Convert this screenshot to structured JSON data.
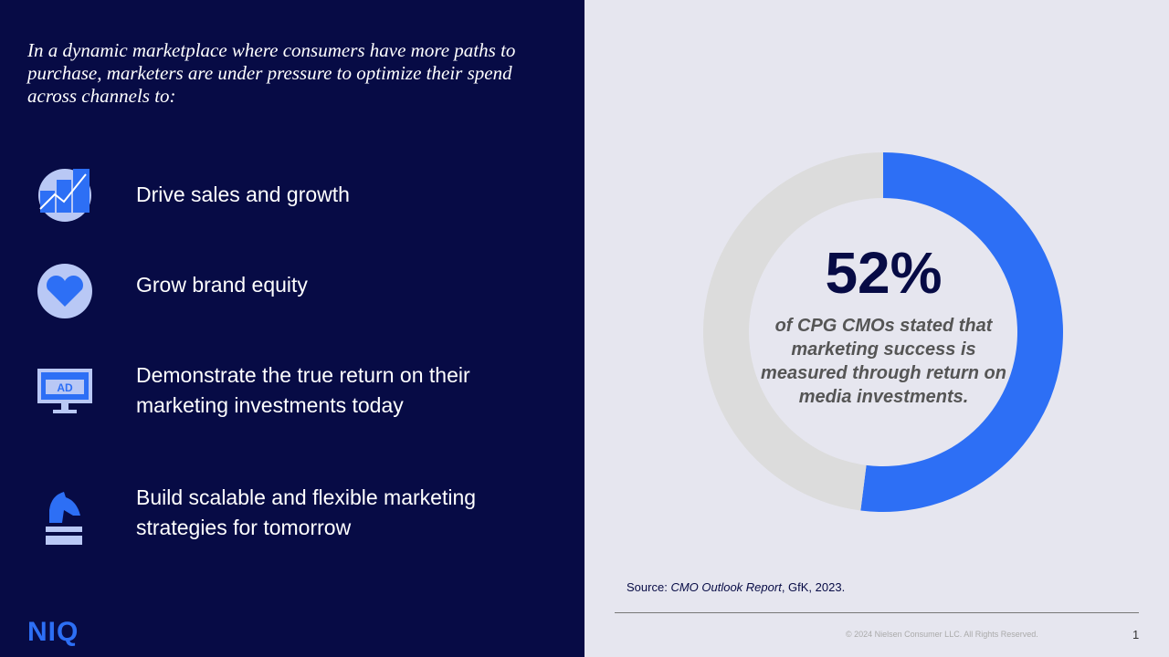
{
  "intro": "In a dynamic marketplace where consumers have more paths to purchase, marketers are under pressure to optimize their spend across channels to:",
  "items": [
    "Drive sales and growth",
    "Grow brand equity",
    "Demonstrate the true return on their marketing investments today",
    "Build scalable and flexible marketing strategies for tomorrow"
  ],
  "logo": "NIQ",
  "chart_data": {
    "type": "donut",
    "values": [
      52,
      48
    ],
    "value_labels": [
      "52%",
      null
    ],
    "colors": [
      "#2d6ff5",
      "#dcdcdc"
    ],
    "caption": "of CPG CMOs stated that marketing success is measured through return on media investments."
  },
  "source": {
    "prefix": "Source:",
    "title": "CMO Outlook Report",
    "rest": ", GfK, 2023."
  },
  "footer": {
    "copyright": "© 2024 Nielsen Consumer LLC. All Rights Reserved.",
    "page": "1"
  }
}
